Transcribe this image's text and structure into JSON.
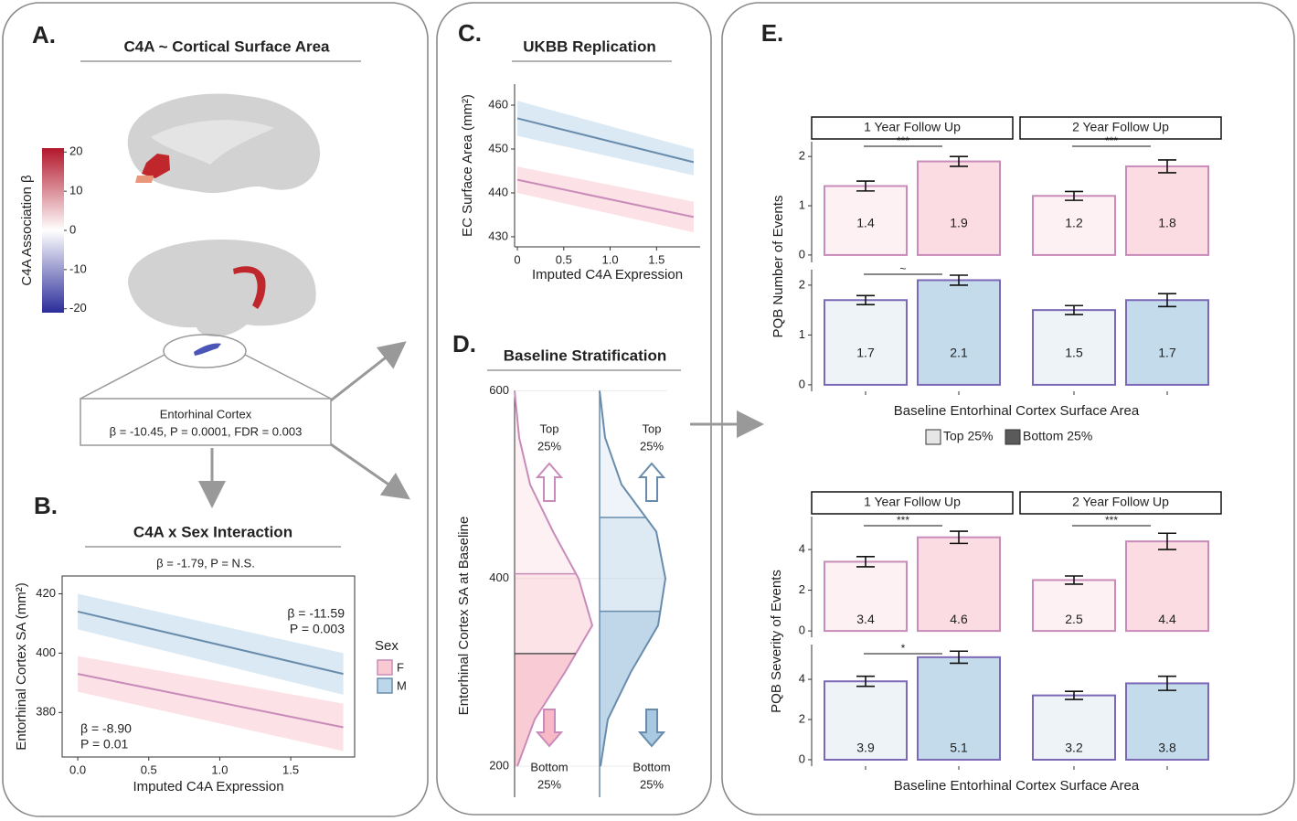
{
  "figure": {
    "panel_labels": [
      "A.",
      "B.",
      "C.",
      "D.",
      "E."
    ],
    "panel_a": {
      "title": "C4A ~ Cortical Surface Area",
      "region": "Entorhinal Cortex",
      "stats": "β = -10.45, P = 0.0001, FDR = 0.003",
      "colorbar": {
        "label": "C4A Association β",
        "lim": [
          -21,
          21
        ],
        "ticks": [
          20,
          10,
          0,
          -10,
          -20
        ],
        "colors": [
          "#2b2c9a",
          "#ffffff",
          "#b2172b"
        ]
      }
    }
  },
  "chart_data": [
    {
      "type": "line",
      "title": "C4A x Sex Interaction",
      "subtitle": "β = -1.79, P = N.S.",
      "xlabel": "Imputed C4A Expression",
      "ylabel": "Entorhinal Cortex SA (mm²)",
      "xlim": [
        -0.11,
        1.95
      ],
      "ylim": [
        365,
        426
      ],
      "xticks": [
        {
          "value": 0,
          "label": "0.0"
        },
        0.5,
        {
          "value": 1,
          "label": "1.0"
        },
        1.5
      ],
      "yticks": [
        380,
        400,
        420
      ],
      "frame": true,
      "legend_title": "Sex",
      "series": [
        {
          "name": "F",
          "color": "#c98bb9",
          "band_color": "#f9c9d2",
          "x": [
            0,
            1.87
          ],
          "values": [
            393,
            375
          ],
          "lower": [
            387,
            367
          ],
          "upper": [
            399,
            383
          ],
          "annotation": [
            "β = -8.90",
            "P = 0.01"
          ]
        },
        {
          "name": "M",
          "color": "#6a8cac",
          "band_color": "#bcd7ea",
          "x": [
            0,
            1.87
          ],
          "values": [
            414,
            393
          ],
          "lower": [
            408,
            386
          ],
          "upper": [
            420,
            400
          ],
          "annotation": [
            "β = -11.59",
            "P = 0.003"
          ]
        }
      ]
    },
    {
      "type": "line",
      "title": "UKBB Replication",
      "xlabel": "Imputed C4A Expression",
      "ylabel": "EC Surface Area (mm²)",
      "xlim": [
        -0.03,
        1.97
      ],
      "ylim": [
        427.7,
        464.8
      ],
      "xticks": [
        0,
        0.5,
        {
          "value": 1,
          "label": "1.0"
        },
        1.5
      ],
      "yticks": [
        430,
        440,
        450,
        460
      ],
      "frame": false,
      "series": [
        {
          "color": "#c98bb9",
          "band_color": "#f9c9d2",
          "x": [
            0,
            1.9
          ],
          "values": [
            443,
            434.5
          ],
          "lower": [
            440,
            431
          ],
          "upper": [
            446,
            438
          ]
        },
        {
          "color": "#6a8cac",
          "band_color": "#bcd7ea",
          "x": [
            0,
            1.9
          ],
          "values": [
            457,
            447
          ],
          "lower": [
            453,
            444
          ],
          "upper": [
            461,
            450
          ]
        }
      ]
    },
    {
      "type": "density",
      "title": "Baseline Stratification",
      "ylabel": "Entorhinal Cortex SA at Baseline",
      "ylim": [
        167,
        612
      ],
      "yticks": [
        200,
        400,
        600
      ],
      "top_label": [
        "Top",
        "25%"
      ],
      "bottom_label": [
        "Bottom",
        "25%"
      ],
      "series": [
        {
          "color": "#c98bb9",
          "fill": "#f7b9c6",
          "sa": [
            200,
            250,
            300,
            350,
            400,
            450,
            500,
            550,
            600
          ],
          "density": [
            3,
            22,
            55,
            85,
            70,
            42,
            17,
            5,
            0
          ],
          "quartiles": [
            320,
            405
          ]
        },
        {
          "color": "#6a8cac",
          "fill": "#a9c9e2",
          "sa": [
            200,
            250,
            300,
            350,
            400,
            450,
            500,
            550,
            600
          ],
          "density": [
            1,
            9,
            34,
            64,
            72,
            62,
            24,
            6,
            0
          ],
          "quartiles": [
            365,
            465
          ]
        }
      ]
    },
    {
      "type": "faceted_bar",
      "ylabel": "PQB Number of Events",
      "xlabel": "Baseline Entorhinal Cortex Surface Area",
      "facets": [
        "1 Year Follow Up",
        "2 Year Follow Up"
      ],
      "legend": [
        {
          "name": "Top 25%",
          "color": "#e6e6e6"
        },
        {
          "name": "Bottom 25%",
          "color": "#5a5a5a"
        }
      ],
      "rows": [
        {
          "ylim": [
            -0.15,
            2.3
          ],
          "yticks": [
            0,
            1,
            2
          ],
          "stroke": "#c98bb9",
          "colors": [
            "#fdf1f3",
            "#fbdce2"
          ],
          "cells": [
            {
              "values": [
                1.4,
                1.9
              ],
              "errors": [
                0.1,
                0.1
              ],
              "sig": "***"
            },
            {
              "values": [
                1.2,
                1.8
              ],
              "errors": [
                0.09,
                0.13
              ],
              "sig": "***"
            }
          ]
        },
        {
          "ylim": [
            -0.13,
            2.31
          ],
          "yticks": [
            0,
            1,
            2
          ],
          "stroke": "#7b68b6",
          "colors": [
            "#eef3f8",
            "#c4dbeb"
          ],
          "cells": [
            {
              "values": [
                1.7,
                2.1
              ],
              "errors": [
                0.09,
                0.1
              ],
              "sig": "~"
            },
            {
              "values": [
                1.5,
                1.7
              ],
              "errors": [
                0.09,
                0.13
              ]
            }
          ]
        }
      ]
    },
    {
      "type": "faceted_bar",
      "ylabel": "PQB Severity of Events",
      "xlabel": "Baseline Entorhinal Cortex Surface Area",
      "facets": [
        "1 Year Follow Up",
        "2 Year Follow Up"
      ],
      "rows": [
        {
          "ylim": [
            -0.31,
            5.62
          ],
          "yticks": [
            0,
            2,
            4
          ],
          "stroke": "#c98bb9",
          "colors": [
            "#fdf1f3",
            "#fbdce2"
          ],
          "cells": [
            {
              "values": [
                3.4,
                4.6
              ],
              "errors": [
                0.25,
                0.3
              ],
              "sig": "***"
            },
            {
              "values": [
                2.5,
                4.4
              ],
              "errors": [
                0.2,
                0.4
              ],
              "sig": "***"
            }
          ]
        },
        {
          "ylim": [
            -0.32,
            5.73
          ],
          "yticks": [
            0,
            2,
            4
          ],
          "stroke": "#7b68b6",
          "colors": [
            "#eef3f8",
            "#c4dbeb"
          ],
          "cells": [
            {
              "values": [
                3.9,
                5.1
              ],
              "errors": [
                0.25,
                0.3
              ],
              "sig": "*"
            },
            {
              "values": [
                3.2,
                3.8
              ],
              "errors": [
                0.2,
                0.35
              ]
            }
          ]
        }
      ]
    }
  ]
}
